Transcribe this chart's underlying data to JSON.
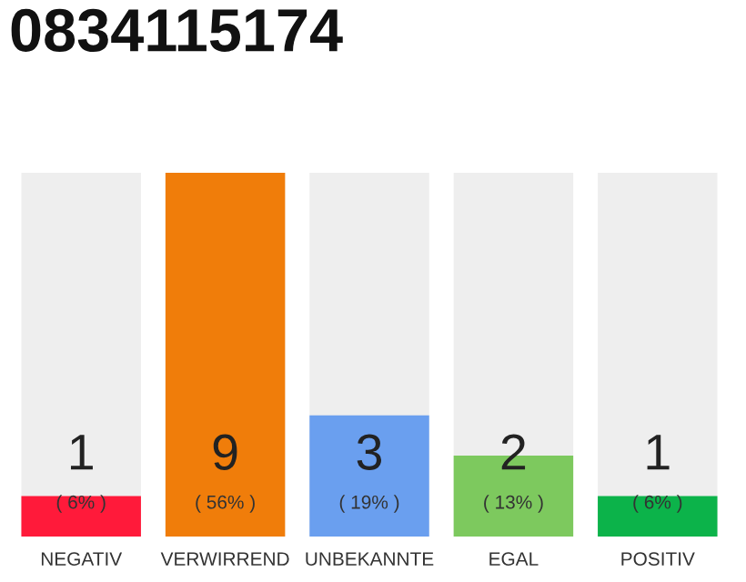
{
  "chart_data": {
    "type": "bar",
    "title": "0834115174",
    "categories": [
      "NEGATIV",
      "VERWIRREND",
      "UNBEKANNTE",
      "EGAL",
      "POSITIV"
    ],
    "values": [
      1,
      9,
      3,
      2,
      1
    ],
    "colors": [
      "#ff1a3a",
      "#f07d0a",
      "#6a9fef",
      "#7dc95e",
      "#0cb34a"
    ],
    "ylim": [
      0,
      9
    ],
    "data_labels": true,
    "annotations": [
      {
        "text": "( 6% )",
        "x": "NEGATIV",
        "y": 0
      },
      {
        "text": "( 56% )",
        "x": "VERWIRREND",
        "y": 0
      },
      {
        "text": "( 19% )",
        "x": "UNBEKANNTE",
        "y": 0
      },
      {
        "text": "( 13% )",
        "x": "EGAL",
        "y": 0
      },
      {
        "text": "( 6% )",
        "x": "POSITIV",
        "y": 0
      }
    ],
    "grid": false,
    "legend": false
  }
}
